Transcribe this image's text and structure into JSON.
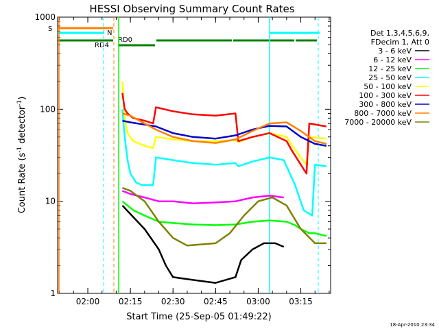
{
  "chart_data": {
    "type": "line",
    "title": "HESSI Observing Summary Count Rates",
    "xlabel": "Start Time (25-Sep-05 01:49:22)",
    "ylabel_prefix": "Count Rate (s",
    "ylabel_exp1": "-1",
    "ylabel_mid": " detector",
    "ylabel_exp2": "-1",
    "ylabel_suffix": ")",
    "yscale": "log",
    "xlim": [
      "01:49:22",
      "03:25:30"
    ],
    "ylim": [
      1,
      1000
    ],
    "x_ticks": [
      "02:00",
      "02:15",
      "02:30",
      "02:45",
      "03:00",
      "03:15"
    ],
    "y_ticks": [
      "1",
      "10",
      "100",
      "1000"
    ],
    "timestamp": "18-Apr-2010 23:34",
    "legend": {
      "header": [
        "Det 1,3,4,5,6,9,",
        "FDecim 1, Att 0"
      ],
      "placement": "right"
    },
    "status_bars": [
      {
        "label": "S",
        "color": "#ff8000"
      },
      {
        "label": "N",
        "color": "#00ffff"
      },
      {
        "label": "RD0",
        "color": "#008000"
      },
      {
        "label": "RD4",
        "color": "#008000"
      }
    ],
    "series": [
      {
        "name": "3 - 6 keV",
        "color": "#000000",
        "points": [
          [
            "02:12:10",
            9
          ],
          [
            "02:15:30",
            7
          ],
          [
            "02:20:00",
            5
          ],
          [
            "02:25:00",
            3
          ],
          [
            "02:27:30",
            2
          ],
          [
            "02:30:00",
            1.5
          ],
          [
            "02:37:00",
            1.4
          ],
          [
            "02:45:00",
            1.3
          ],
          [
            "02:52:00",
            1.5
          ],
          [
            "02:54:00",
            2.3
          ],
          [
            "02:58:00",
            3
          ],
          [
            "03:02:00",
            3.5
          ],
          [
            "03:06:00",
            3.5
          ],
          [
            "03:09:00",
            3.2
          ]
        ]
      },
      {
        "name": "6 - 12 keV",
        "color": "#ff00ff",
        "points": [
          [
            "02:12:10",
            13
          ],
          [
            "02:15:00",
            12
          ],
          [
            "02:20:00",
            11
          ],
          [
            "02:25:00",
            10
          ],
          [
            "02:30:00",
            10
          ],
          [
            "02:37:00",
            9.5
          ],
          [
            "02:45:00",
            9.7
          ],
          [
            "02:52:00",
            10
          ],
          [
            "02:58:00",
            11
          ],
          [
            "03:04:00",
            11.5
          ],
          [
            "03:09:00",
            11
          ]
        ]
      },
      {
        "name": "12 - 25 keV",
        "color": "#00ff00",
        "points": [
          [
            "02:12:10",
            10
          ],
          [
            "02:16:00",
            8
          ],
          [
            "02:20:00",
            7
          ],
          [
            "02:25:00",
            6
          ],
          [
            "02:30:00",
            5.8
          ],
          [
            "02:37:00",
            5.6
          ],
          [
            "02:45:00",
            5.5
          ],
          [
            "02:52:00",
            5.6
          ],
          [
            "02:58:00",
            6
          ],
          [
            "03:04:00",
            6.2
          ],
          [
            "03:10:00",
            6
          ],
          [
            "03:13:00",
            5.5
          ],
          [
            "03:15:00",
            5
          ],
          [
            "03:18:00",
            4.5
          ],
          [
            "03:20:00",
            4.5
          ],
          [
            "03:24:00",
            4.2
          ]
        ]
      },
      {
        "name": "25 - 50 keV",
        "color": "#00ffff",
        "points": [
          [
            "02:12:10",
            100
          ],
          [
            "02:13:00",
            50
          ],
          [
            "02:14:00",
            28
          ],
          [
            "02:15:00",
            20
          ],
          [
            "02:17:00",
            16
          ],
          [
            "02:19:00",
            15
          ],
          [
            "02:23:00",
            15
          ],
          [
            "02:24:00",
            30
          ],
          [
            "02:30:00",
            28
          ],
          [
            "02:37:00",
            26
          ],
          [
            "02:45:00",
            25
          ],
          [
            "02:52:00",
            26
          ],
          [
            "02:53:00",
            24
          ],
          [
            "02:58:00",
            27
          ],
          [
            "03:04:00",
            30
          ],
          [
            "03:09:00",
            28
          ],
          [
            "03:13:00",
            15
          ],
          [
            "03:16:00",
            8
          ],
          [
            "03:19:00",
            7
          ],
          [
            "03:20:00",
            25
          ],
          [
            "03:24:00",
            24
          ]
        ]
      },
      {
        "name": "50 - 100 keV",
        "color": "#ffff00",
        "points": [
          [
            "02:12:10",
            200
          ],
          [
            "02:13:00",
            80
          ],
          [
            "02:14:00",
            55
          ],
          [
            "02:16:00",
            45
          ],
          [
            "02:20:00",
            40
          ],
          [
            "02:23:00",
            38
          ],
          [
            "02:24:00",
            50
          ],
          [
            "02:30:00",
            47
          ],
          [
            "02:37:00",
            45
          ],
          [
            "02:45:00",
            45
          ],
          [
            "02:52:00",
            46
          ],
          [
            "02:53:00",
            44
          ],
          [
            "02:58:00",
            50
          ],
          [
            "03:04:00",
            55
          ],
          [
            "03:10:00",
            50
          ],
          [
            "03:12:00",
            40
          ],
          [
            "03:15:00",
            30
          ],
          [
            "03:17:00",
            25
          ],
          [
            "03:18:00",
            50
          ],
          [
            "03:24:00",
            48
          ]
        ]
      },
      {
        "name": "100 - 300 keV",
        "color": "#ff0000",
        "points": [
          [
            "02:12:10",
            150
          ],
          [
            "02:13:00",
            100
          ],
          [
            "02:14:00",
            90
          ],
          [
            "02:16:00",
            80
          ],
          [
            "02:20:00",
            75
          ],
          [
            "02:23:00",
            70
          ],
          [
            "02:24:00",
            105
          ],
          [
            "02:30:00",
            95
          ],
          [
            "02:37:00",
            88
          ],
          [
            "02:45:00",
            85
          ],
          [
            "02:52:00",
            90
          ],
          [
            "02:53:00",
            45
          ],
          [
            "02:58:00",
            50
          ],
          [
            "03:04:00",
            55
          ],
          [
            "03:10:00",
            45
          ],
          [
            "03:12:00",
            35
          ],
          [
            "03:15:00",
            25
          ],
          [
            "03:17:00",
            20
          ],
          [
            "03:18:00",
            70
          ],
          [
            "03:24:00",
            65
          ]
        ]
      },
      {
        "name": "300 - 800 keV",
        "color": "#0000cc",
        "points": [
          [
            "02:12:10",
            75
          ],
          [
            "02:15:00",
            72
          ],
          [
            "02:20:00",
            68
          ],
          [
            "02:24:00",
            65
          ],
          [
            "02:30:00",
            55
          ],
          [
            "02:37:00",
            50
          ],
          [
            "02:45:00",
            48
          ],
          [
            "02:52:00",
            52
          ],
          [
            "02:58:00",
            60
          ],
          [
            "03:04:00",
            66
          ],
          [
            "03:10:00",
            65
          ],
          [
            "03:15:00",
            50
          ],
          [
            "03:20:00",
            42
          ],
          [
            "03:24:00",
            40
          ]
        ]
      },
      {
        "name": "800 - 7000 keV",
        "color": "#ff8000",
        "points": [
          [
            "02:12:10",
            90
          ],
          [
            "02:15:00",
            85
          ],
          [
            "02:20:00",
            70
          ],
          [
            "02:24:00",
            60
          ],
          [
            "02:30:00",
            50
          ],
          [
            "02:37:00",
            45
          ],
          [
            "02:45:00",
            43
          ],
          [
            "02:52:00",
            47
          ],
          [
            "02:58:00",
            58
          ],
          [
            "03:04:00",
            70
          ],
          [
            "03:10:00",
            72
          ],
          [
            "03:15:00",
            58
          ],
          [
            "03:20:00",
            45
          ],
          [
            "03:24:00",
            42
          ]
        ]
      },
      {
        "name": "7000 - 20000 keV",
        "color": "#808000",
        "points": [
          [
            "02:12:10",
            14
          ],
          [
            "02:15:00",
            13
          ],
          [
            "02:20:00",
            10
          ],
          [
            "02:25:00",
            6
          ],
          [
            "02:30:00",
            4
          ],
          [
            "02:35:00",
            3.3
          ],
          [
            "02:45:00",
            3.5
          ],
          [
            "02:50:00",
            4.5
          ],
          [
            "02:55:00",
            7
          ],
          [
            "03:00:00",
            10
          ],
          [
            "03:05:00",
            11
          ],
          [
            "03:10:00",
            9
          ],
          [
            "03:15:00",
            5
          ],
          [
            "03:20:00",
            3.5
          ],
          [
            "03:24:00",
            3.5
          ]
        ]
      }
    ]
  }
}
